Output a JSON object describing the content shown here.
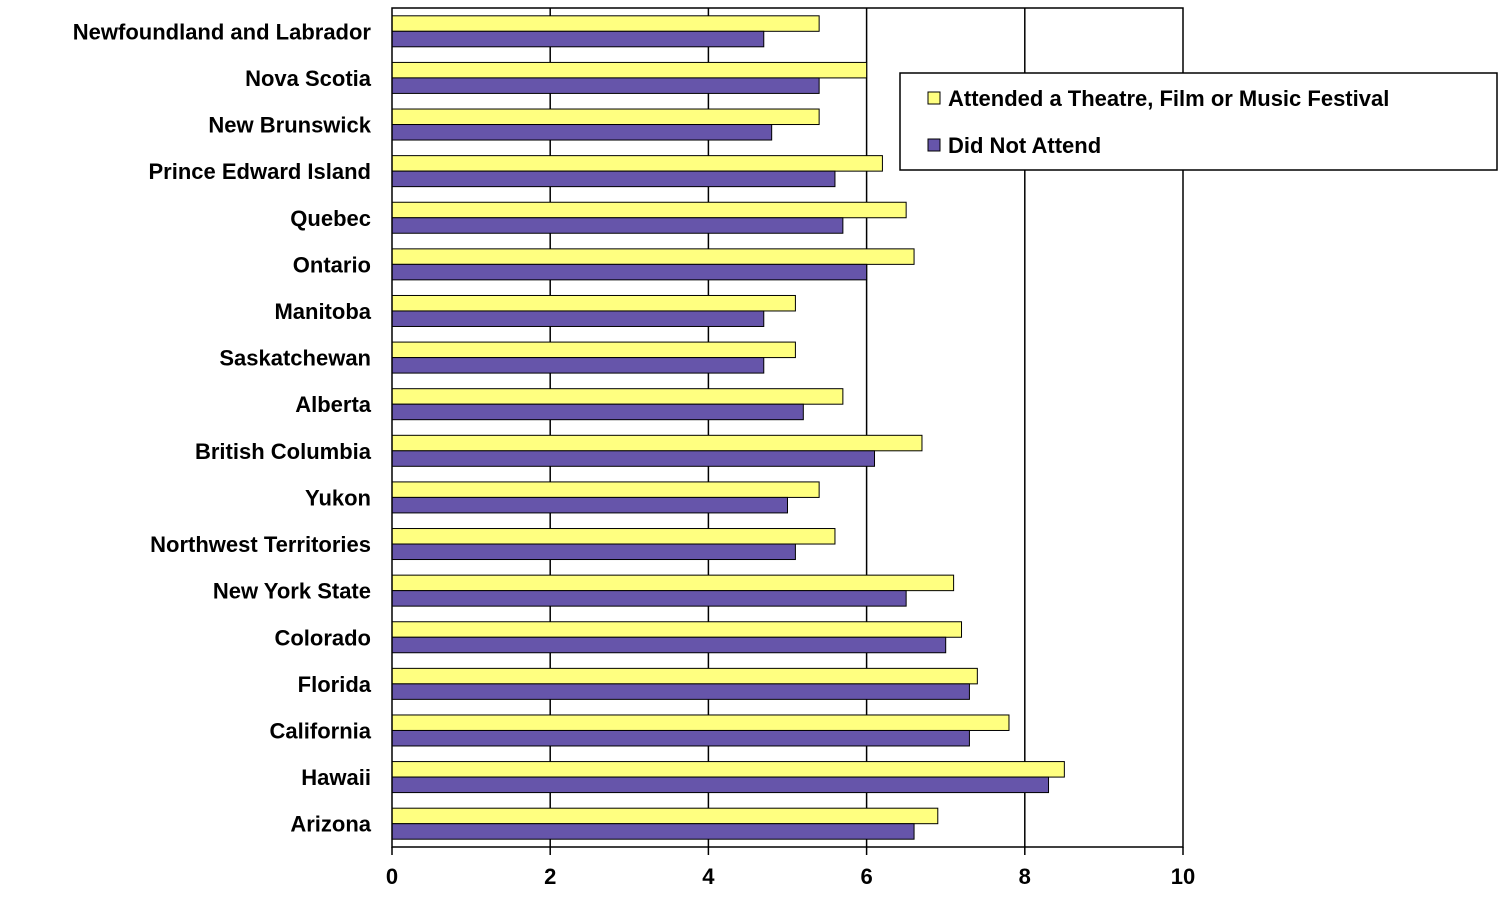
{
  "chart_data": {
    "type": "bar",
    "orientation": "horizontal",
    "title": "",
    "xlabel": "",
    "ylabel": "",
    "xlim": [
      0,
      10
    ],
    "x_ticks": [
      0,
      2,
      4,
      6,
      8,
      10
    ],
    "grid": "vertical major gridlines",
    "legend_position": "top-right",
    "categories": [
      "Newfoundland and Labrador",
      "Nova Scotia",
      "New Brunswick",
      "Prince Edward Island",
      "Quebec",
      "Ontario",
      "Manitoba",
      "Saskatchewan",
      "Alberta",
      "British Columbia",
      "Yukon",
      "Northwest Territories",
      "New York State",
      "Colorado",
      "Florida",
      "California",
      "Hawaii",
      "Arizona"
    ],
    "series": [
      {
        "name": "Attended a Theatre, Film or Music Festival",
        "color": "#ffff80",
        "values": [
          5.4,
          6.0,
          5.4,
          6.2,
          6.5,
          6.6,
          5.1,
          5.1,
          5.7,
          6.7,
          5.4,
          5.6,
          7.1,
          7.2,
          7.4,
          7.8,
          8.5,
          6.9
        ]
      },
      {
        "name": "Did Not Attend",
        "color": "#6655aa",
        "values": [
          4.7,
          5.4,
          4.8,
          5.6,
          5.7,
          6.0,
          4.7,
          4.7,
          5.2,
          6.1,
          5.0,
          5.1,
          6.5,
          7.0,
          7.3,
          7.3,
          8.3,
          6.6
        ]
      }
    ]
  }
}
